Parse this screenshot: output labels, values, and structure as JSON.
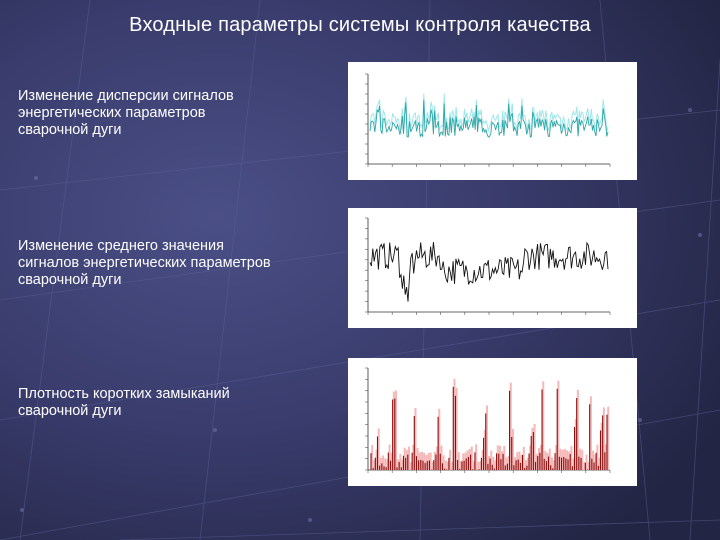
{
  "slide": {
    "title": "Входные параметры системы контроля качества",
    "items": [
      {
        "label": "Изменение дисперсии сигналов энергетических параметров сварочной дуги"
      },
      {
        "label": "Изменение среднего значения сигналов энергетических параметров сварочной дуги"
      },
      {
        "label": "Плотность коротких замыканий сварочной дуги"
      }
    ]
  },
  "colors": {
    "background": "#3a3d6e",
    "text": "#ffffff",
    "series_1": "#2aa6a6",
    "series_1_fill": "#9fe6ea",
    "series_2": "#111111",
    "series_3": "#8b1010",
    "series_3_fill": "#f5b8b8"
  }
}
